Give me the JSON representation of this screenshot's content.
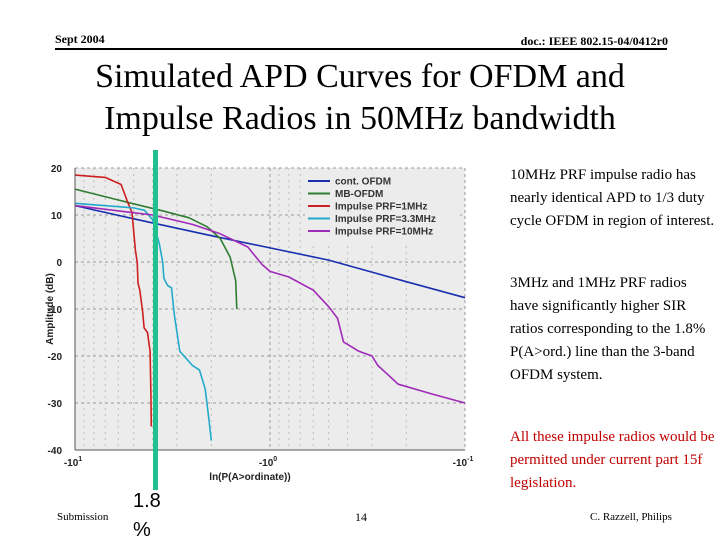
{
  "header": {
    "left": "Sept 2004",
    "right": "doc.: IEEE 802.15-04/0412r0"
  },
  "title_lines": [
    "Simulated APD Curves for OFDM and",
    "Impulse Radios in 50MHz bandwidth"
  ],
  "notes": [
    "10MHz PRF impulse radio has nearly identical APD to 1/3 duty cycle OFDM in region of interest.",
    "3MHz and 1MHz PRF radios have significantly higher SIR ratios corresponding to the 1.8% P(A>ord.) line than the 3-band OFDM system.",
    "All these impulse radios would be permitted under current part 15f legislation."
  ],
  "marker": {
    "label": "1.8 %",
    "color": "#20c090"
  },
  "footer": {
    "left": "Submission",
    "page": "14",
    "right": "C. Razzell, Philips"
  },
  "colors": {
    "note_emphasis": "#c00000",
    "plot_background": "#ececec",
    "grid": "#9a9a9a"
  },
  "chart_data": {
    "type": "line",
    "xlabel": "ln(P(A>ordinate))",
    "ylabel": "Amplitude (dB)",
    "x_scale": "log",
    "xlim": [
      -10,
      0.1
    ],
    "ylim": [
      -40,
      20
    ],
    "x_ticks": [
      {
        "sup": "1",
        "at": -10
      },
      {
        "sup": "0",
        "at": -1
      },
      {
        "sup": "-1",
        "at": -0.1
      }
    ],
    "y_ticks": [
      20,
      10,
      0,
      -10,
      -20,
      -30,
      -40
    ],
    "legend_position": "top-right",
    "grid": true,
    "series": [
      {
        "name": "cont. OFDM",
        "color": "#1a2fb0",
        "points": [
          [
            -10,
            12
          ],
          [
            -5,
            9.2
          ],
          [
            -2,
            5.6
          ],
          [
            -1,
            3
          ],
          [
            -0.5,
            0.4
          ],
          [
            -0.2,
            -4.2
          ],
          [
            -0.1,
            -7.6
          ]
        ]
      },
      {
        "name": "MB-OFDM",
        "color": "#2e7d32",
        "points": [
          [
            -10,
            15.5
          ],
          [
            -6,
            13.2
          ],
          [
            -3.5,
            10.8
          ],
          [
            -2.6,
            9.4
          ],
          [
            -2.1,
            7.5
          ],
          [
            -1.8,
            5
          ],
          [
            -1.6,
            1
          ],
          [
            -1.5,
            -4
          ],
          [
            -1.48,
            -10
          ]
        ]
      },
      {
        "name": "Impulse PRF=1MHz",
        "color": "#cc1f1f",
        "points": [
          [
            -10,
            18.5
          ],
          [
            -7,
            18
          ],
          [
            -5.8,
            16.5
          ],
          [
            -5.4,
            13
          ],
          [
            -5.1,
            10.5
          ],
          [
            -4.9,
            2.5
          ],
          [
            -4.8,
            0
          ],
          [
            -4.75,
            -4.5
          ],
          [
            -4.65,
            -6
          ],
          [
            -4.5,
            -10.5
          ],
          [
            -4.42,
            -14
          ],
          [
            -4.25,
            -15
          ],
          [
            -4.12,
            -19
          ],
          [
            -4.08,
            -28
          ],
          [
            -4.06,
            -35
          ]
        ]
      },
      {
        "name": "Impulse PRF=3.3MHz",
        "color": "#23aacb",
        "points": [
          [
            -10,
            12.5
          ],
          [
            -5,
            11.5
          ],
          [
            -4.4,
            11
          ],
          [
            -4,
            9
          ],
          [
            -3.7,
            4
          ],
          [
            -3.55,
            0
          ],
          [
            -3.5,
            -3.5
          ],
          [
            -3.35,
            -5
          ],
          [
            -3.2,
            -5.5
          ],
          [
            -3.1,
            -11
          ],
          [
            -3,
            -15
          ],
          [
            -2.9,
            -19
          ],
          [
            -2.5,
            -22
          ],
          [
            -2.3,
            -23
          ],
          [
            -2.15,
            -27
          ],
          [
            -2.05,
            -34
          ],
          [
            -2,
            -38
          ]
        ]
      },
      {
        "name": "Impulse PRF=10MHz",
        "color": "#a02ab8",
        "points": [
          [
            -10,
            12
          ],
          [
            -4,
            10
          ],
          [
            -2.5,
            8
          ],
          [
            -1.8,
            6
          ],
          [
            -1.3,
            3.2
          ],
          [
            -1.1,
            -0.5
          ],
          [
            -1,
            -2
          ],
          [
            -0.8,
            -3.2
          ],
          [
            -0.6,
            -6
          ],
          [
            -0.5,
            -9.5
          ],
          [
            -0.45,
            -12
          ],
          [
            -0.42,
            -17
          ],
          [
            -0.35,
            -19
          ],
          [
            -0.3,
            -20
          ],
          [
            -0.28,
            -22
          ],
          [
            -0.22,
            -26
          ],
          [
            -0.15,
            -28
          ],
          [
            -0.1,
            -30
          ]
        ]
      }
    ]
  }
}
